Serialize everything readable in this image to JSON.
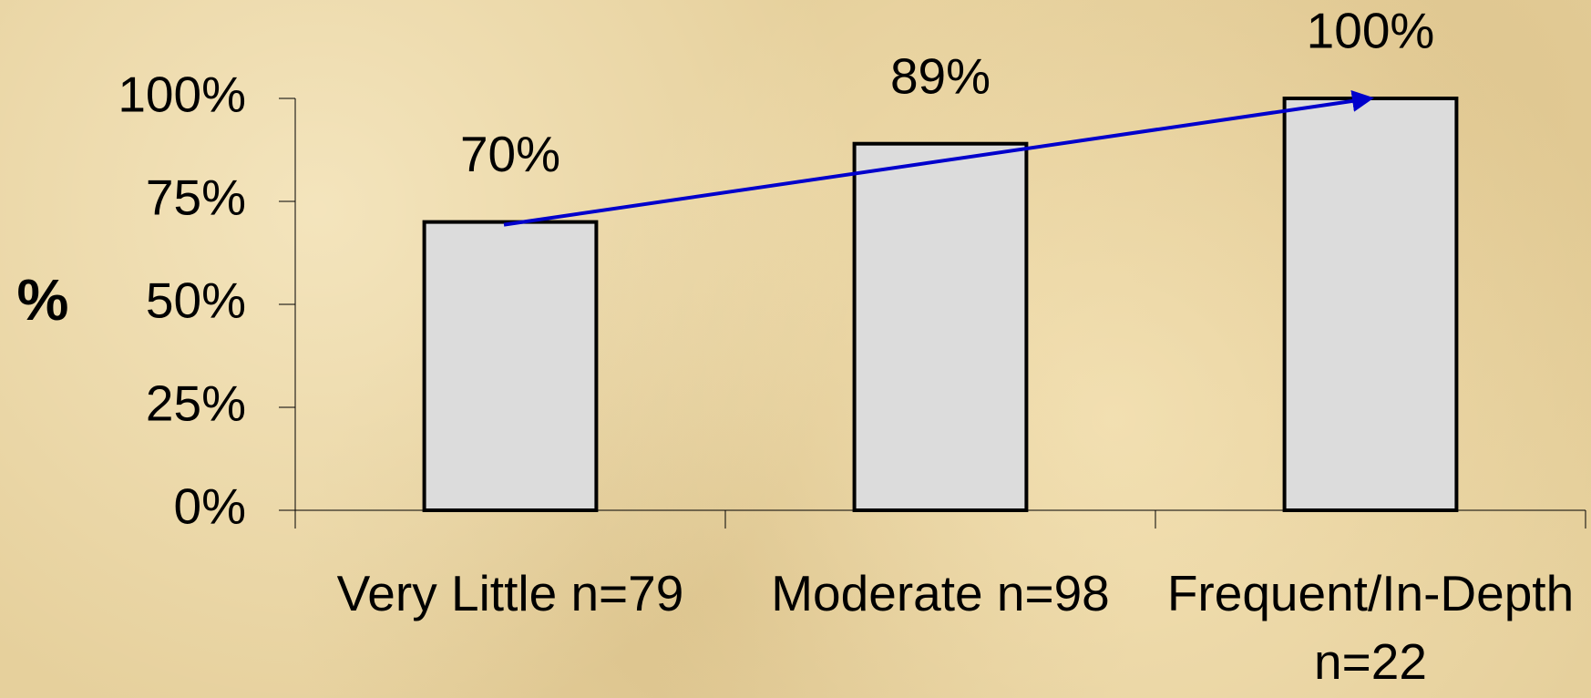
{
  "chart_data": {
    "type": "bar",
    "y_label": "%",
    "categories": [
      "Very Little n=79",
      "Moderate n=98",
      "Frequent/In-Depth n=22"
    ],
    "values": [
      70,
      89,
      100
    ],
    "value_labels": [
      "70%",
      "89%",
      "100%"
    ],
    "color": "#dcdcdc",
    "trend_color": "#0000cc",
    "ylim": [
      0,
      100
    ],
    "yticks": [
      {
        "value": 0,
        "label": "0%"
      },
      {
        "value": 25,
        "label": "25%"
      },
      {
        "value": 50,
        "label": "50%"
      },
      {
        "value": 75,
        "label": "75%"
      },
      {
        "value": 100,
        "label": "100%"
      }
    ]
  }
}
